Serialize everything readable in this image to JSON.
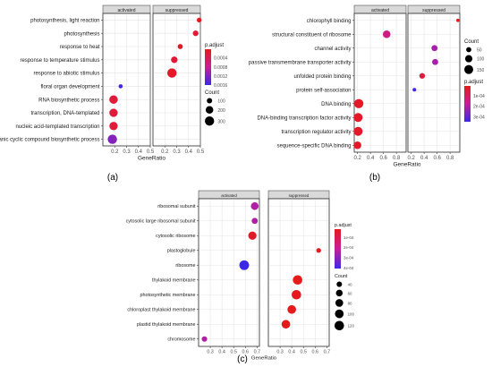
{
  "figure": {
    "panel_labels": [
      "(a)",
      "(b)",
      "(c)"
    ]
  },
  "chart_data": [
    {
      "type": "scatter",
      "panel": "(a)",
      "facets": [
        "activated",
        "suppressed"
      ],
      "xlabel": "GeneRatio",
      "xlim": [
        0.1,
        0.5
      ],
      "xticks": [
        0.2,
        0.3,
        0.4,
        0.5
      ],
      "categories": [
        "photosynthesis, light reaction",
        "photosynthesis",
        "response to heat",
        "response to temperature stimulus",
        "response to abiotic stimulus",
        "floral organ development",
        "RNA biosynthetic process",
        "transcription, DNA-templated",
        "nucleic acid-templated transcription",
        "organic cyclic compound biosynthetic process"
      ],
      "points": [
        {
          "category": "photosynthesis, light reaction",
          "facet": "suppressed",
          "x": 0.49,
          "p_adjust": 2e-05,
          "count": 80
        },
        {
          "category": "photosynthesis",
          "facet": "suppressed",
          "x": 0.46,
          "p_adjust": 0.0002,
          "count": 110
        },
        {
          "category": "response to heat",
          "facet": "suppressed",
          "x": 0.33,
          "p_adjust": 0.0001,
          "count": 90
        },
        {
          "category": "response to temperature stimulus",
          "facet": "suppressed",
          "x": 0.28,
          "p_adjust": 0.0002,
          "count": 150
        },
        {
          "category": "response to abiotic stimulus",
          "facet": "suppressed",
          "x": 0.26,
          "p_adjust": 0.0001,
          "count": 300
        },
        {
          "category": "floral organ development",
          "facet": "activated",
          "x": 0.25,
          "p_adjust": 0.0016,
          "count": 60
        },
        {
          "category": "RNA biosynthetic process",
          "facet": "activated",
          "x": 0.19,
          "p_adjust": 0.0002,
          "count": 250
        },
        {
          "category": "transcription, DNA-templated",
          "facet": "activated",
          "x": 0.19,
          "p_adjust": 0.0002,
          "count": 240
        },
        {
          "category": "nucleic acid-templated transcription",
          "facet": "activated",
          "x": 0.19,
          "p_adjust": 0.0002,
          "count": 240
        },
        {
          "category": "organic cyclic compound biosynthetic process",
          "facet": "activated",
          "x": 0.18,
          "p_adjust": 0.0012,
          "count": 300
        }
      ],
      "legend": {
        "color_title": "p.adjust",
        "color_ticks": [
          "0.0004",
          "0.0008",
          "0.0012",
          "0.0016"
        ],
        "color_range": [
          2e-05,
          0.0016
        ],
        "size_title": "Count",
        "size_ticks": [
          100,
          200,
          300
        ],
        "placement": "right"
      }
    },
    {
      "type": "scatter",
      "panel": "(b)",
      "facets": [
        "activated",
        "suppressed"
      ],
      "xlabel": "GeneRatio",
      "xlim": [
        0.15,
        0.95
      ],
      "xticks": [
        0.2,
        0.4,
        0.6,
        0.8
      ],
      "categories": [
        "chlorophyll binding",
        "structural constituent of ribosome",
        "channel activity",
        "passive transmembrane transporter activity",
        "unfolded protein binding",
        "protein self-association",
        "DNA binding",
        "DNA-binding transcription factor activity",
        "transcription regulator activity",
        "sequence-specific DNA binding"
      ],
      "points": [
        {
          "category": "chlorophyll binding",
          "facet": "suppressed",
          "x": 0.92,
          "p_adjust": 5e-06,
          "count": 20
        },
        {
          "category": "structural constituent of ribosome",
          "facet": "activated",
          "x": 0.65,
          "p_adjust": 0.00015,
          "count": 110
        },
        {
          "category": "channel activity",
          "facet": "suppressed",
          "x": 0.56,
          "p_adjust": 0.00022,
          "count": 70
        },
        {
          "category": "passive transmembrane transporter activity",
          "facet": "suppressed",
          "x": 0.57,
          "p_adjust": 0.00022,
          "count": 70
        },
        {
          "category": "unfolded protein binding",
          "facet": "suppressed",
          "x": 0.37,
          "p_adjust": 5e-05,
          "count": 60
        },
        {
          "category": "protein self-association",
          "facet": "suppressed",
          "x": 0.25,
          "p_adjust": 0.00035,
          "count": 25
        },
        {
          "category": "DNA binding",
          "facet": "activated",
          "x": 0.22,
          "p_adjust": 2e-05,
          "count": 160
        },
        {
          "category": "DNA-binding transcription factor activity",
          "facet": "activated",
          "x": 0.21,
          "p_adjust": 2e-05,
          "count": 150
        },
        {
          "category": "transcription regulator activity",
          "facet": "activated",
          "x": 0.21,
          "p_adjust": 2e-05,
          "count": 150
        },
        {
          "category": "sequence-specific DNA binding",
          "facet": "activated",
          "x": 0.2,
          "p_adjust": 2e-05,
          "count": 110
        }
      ],
      "legend": {
        "color_title": "p.adjust",
        "color_ticks": [
          "1e-04",
          "2e-04",
          "3e-04"
        ],
        "color_range": [
          5e-06,
          0.00035
        ],
        "size_title": "Count",
        "size_ticks": [
          50,
          100,
          150
        ],
        "placement": "right"
      }
    },
    {
      "type": "scatter",
      "panel": "(c)",
      "facets": [
        "activated",
        "suppressed"
      ],
      "xlabel": "GeneRatio",
      "xlim": [
        0.2,
        0.72
      ],
      "xticks": [
        0.3,
        0.4,
        0.5,
        0.6,
        0.7
      ],
      "categories": [
        "ribosomal subunit",
        "cytosolic large ribosomal subunit",
        "cytosolic ribosome",
        "plastoglobule",
        "ribosome",
        "thylakoid membrane",
        "photosynthetic membrane",
        "chloroplast thylakoid membrane",
        "plastid thylakoid membrane",
        "chromosome"
      ],
      "points": [
        {
          "category": "ribosomal subunit",
          "facet": "activated",
          "x": 0.68,
          "p_adjust": 0.00025,
          "count": 80
        },
        {
          "category": "cytosolic large ribosomal subunit",
          "facet": "activated",
          "x": 0.68,
          "p_adjust": 0.00025,
          "count": 50
        },
        {
          "category": "cytosolic ribosome",
          "facet": "activated",
          "x": 0.66,
          "p_adjust": 4e-05,
          "count": 90
        },
        {
          "category": "plastoglobule",
          "facet": "suppressed",
          "x": 0.63,
          "p_adjust": 2e-05,
          "count": 30
        },
        {
          "category": "ribosome",
          "facet": "activated",
          "x": 0.59,
          "p_adjust": 0.00041,
          "count": 125
        },
        {
          "category": "thylakoid membrane",
          "facet": "suppressed",
          "x": 0.45,
          "p_adjust": 2e-05,
          "count": 120
        },
        {
          "category": "photosynthetic membrane",
          "facet": "suppressed",
          "x": 0.44,
          "p_adjust": 2e-05,
          "count": 120
        },
        {
          "category": "chloroplast thylakoid membrane",
          "facet": "suppressed",
          "x": 0.4,
          "p_adjust": 2e-05,
          "count": 100
        },
        {
          "category": "plastid thylakoid membrane",
          "facet": "suppressed",
          "x": 0.35,
          "p_adjust": 2e-05,
          "count": 100
        },
        {
          "category": "chromosome",
          "facet": "activated",
          "x": 0.25,
          "p_adjust": 0.00025,
          "count": 40
        }
      ],
      "legend": {
        "color_title": "p.adjust",
        "color_ticks": [
          "1e-04",
          "2e-04",
          "3e-04",
          "4e-04"
        ],
        "color_range": [
          2e-05,
          0.00041
        ],
        "size_title": "Count",
        "size_ticks": [
          40,
          60,
          80,
          100,
          120
        ],
        "placement": "right"
      }
    }
  ]
}
